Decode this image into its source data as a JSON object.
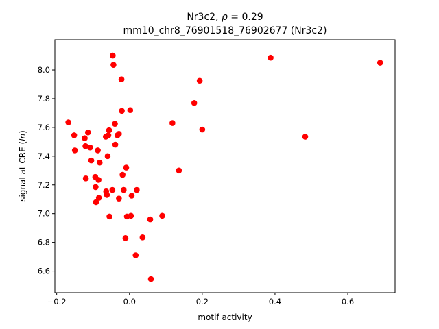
{
  "chart_data": {
    "type": "scatter",
    "title_line1_prefix": "Nr3c2, ",
    "title_line1_rho": "ρ",
    "title_line1_suffix": " = 0.29",
    "title_line2": "mm10_chr8_76901518_76902677 (Nr3c2)",
    "xlabel": "motif activity",
    "ylabel_prefix": "signal at CRE (",
    "ylabel_italic": "ln",
    "ylabel_suffix": ")",
    "xlim": [
      -0.205,
      0.73
    ],
    "ylim": [
      6.45,
      8.21
    ],
    "xticks": [
      -0.2,
      0.0,
      0.2,
      0.4,
      0.6
    ],
    "xtick_labels": [
      "−0.2",
      "0.0",
      "0.2",
      "0.4",
      "0.6"
    ],
    "yticks": [
      6.6,
      6.8,
      7.0,
      7.2,
      7.4,
      7.6,
      7.8,
      8.0
    ],
    "ytick_labels": [
      "6.6",
      "6.8",
      "7.0",
      "7.2",
      "7.4",
      "7.6",
      "7.8",
      "8.0"
    ],
    "marker_color": "#ff0000",
    "grid": false,
    "series": [
      {
        "points": [
          [
            -0.168,
            7.635
          ],
          [
            -0.152,
            7.545
          ],
          [
            -0.15,
            7.44
          ],
          [
            -0.123,
            7.525
          ],
          [
            -0.121,
            7.47
          ],
          [
            -0.12,
            7.245
          ],
          [
            -0.114,
            7.565
          ],
          [
            -0.108,
            7.46
          ],
          [
            -0.105,
            7.37
          ],
          [
            -0.094,
            7.255
          ],
          [
            -0.093,
            7.185
          ],
          [
            -0.092,
            7.08
          ],
          [
            -0.087,
            7.44
          ],
          [
            -0.085,
            7.235
          ],
          [
            -0.084,
            7.11
          ],
          [
            -0.082,
            7.355
          ],
          [
            -0.065,
            7.535
          ],
          [
            -0.064,
            7.155
          ],
          [
            -0.062,
            7.13
          ],
          [
            -0.06,
            7.4
          ],
          [
            -0.058,
            7.545
          ],
          [
            -0.056,
            7.58
          ],
          [
            -0.055,
            6.98
          ],
          [
            -0.047,
            7.165
          ],
          [
            -0.046,
            8.1
          ],
          [
            -0.044,
            8.035
          ],
          [
            -0.04,
            7.625
          ],
          [
            -0.039,
            7.48
          ],
          [
            -0.033,
            7.545
          ],
          [
            -0.029,
            7.555
          ],
          [
            -0.029,
            7.105
          ],
          [
            -0.022,
            7.935
          ],
          [
            -0.021,
            7.715
          ],
          [
            -0.019,
            7.27
          ],
          [
            -0.016,
            7.165
          ],
          [
            -0.011,
            6.83
          ],
          [
            -0.009,
            7.32
          ],
          [
            -0.007,
            6.98
          ],
          [
            0.002,
            7.72
          ],
          [
            0.004,
            6.985
          ],
          [
            0.006,
            7.125
          ],
          [
            0.017,
            6.71
          ],
          [
            0.02,
            7.165
          ],
          [
            0.036,
            6.835
          ],
          [
            0.057,
            6.96
          ],
          [
            0.059,
            6.545
          ],
          [
            0.09,
            6.985
          ],
          [
            0.118,
            7.63
          ],
          [
            0.136,
            7.3
          ],
          [
            0.178,
            7.77
          ],
          [
            0.193,
            7.925
          ],
          [
            0.2,
            7.585
          ],
          [
            0.388,
            8.085
          ],
          [
            0.483,
            7.535
          ],
          [
            0.689,
            8.05
          ]
        ]
      }
    ]
  }
}
